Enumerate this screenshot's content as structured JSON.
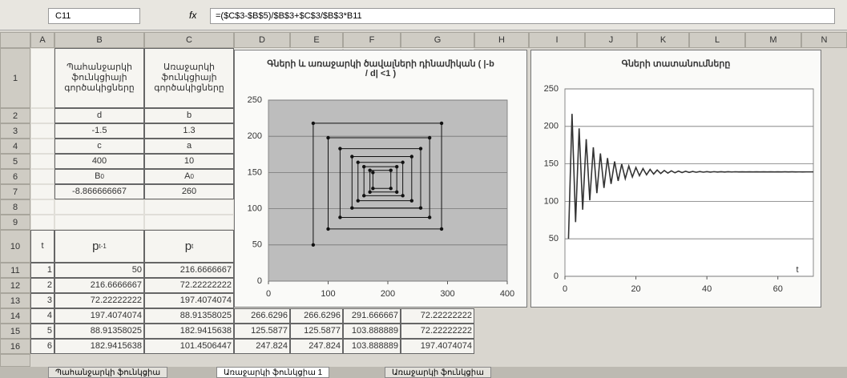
{
  "formula_bar": {
    "cell": "C11",
    "fx": "fx",
    "formula": "=($C$3-$B$5)/$B$3+$C$3/$B$3*B11"
  },
  "columns": [
    "A",
    "B",
    "C",
    "D",
    "E",
    "F",
    "G",
    "H",
    "I",
    "J",
    "K",
    "L",
    "M",
    "N"
  ],
  "rows": [
    "1",
    "2",
    "3",
    "4",
    "5",
    "6",
    "7",
    "8",
    "9",
    "10",
    "11",
    "12",
    "13",
    "14",
    "15",
    "16"
  ],
  "cells": [
    [
      null,
      "Պահանջարկի ֆունկցիայի գործակիցները",
      "Առաջարկի ֆունկցիայի գործակիցները",
      null,
      null,
      null,
      null
    ],
    [
      null,
      "d",
      "b",
      null,
      null,
      null,
      null
    ],
    [
      null,
      "-1.5",
      "1.3",
      null,
      null,
      null,
      null
    ],
    [
      null,
      "c",
      "a",
      null,
      null,
      null,
      null
    ],
    [
      null,
      "400",
      "10",
      null,
      null,
      null,
      null
    ],
    [
      null,
      {
        "base": "B",
        "sub": "0"
      },
      {
        "base": "A",
        "sub": "0"
      },
      null,
      null,
      null,
      null
    ],
    [
      null,
      "-8.866666667",
      "260",
      null,
      null,
      null,
      null
    ],
    [
      null,
      null,
      null,
      null,
      null,
      null,
      null
    ],
    [
      null,
      null,
      null,
      null,
      null,
      null,
      null
    ],
    [
      "t",
      {
        "base": "p",
        "sub": "t-1"
      },
      {
        "base": "p",
        "sub": "t"
      },
      null,
      null,
      null,
      null
    ],
    [
      "1",
      "50",
      "216.6666667",
      null,
      null,
      null,
      null
    ],
    [
      "2",
      "216.6666667",
      "72.22222222",
      null,
      null,
      null,
      null
    ],
    [
      "3",
      "72.22222222",
      "197.4074074",
      null,
      null,
      null,
      null
    ],
    [
      "4",
      "197.4074074",
      "88.91358025",
      "266.6296",
      "266.6296",
      "291.666667",
      "72.22222222"
    ],
    [
      "5",
      "88.91358025",
      "182.9415638",
      "125.5877",
      "125.5877",
      "103.888889",
      "72.22222222"
    ],
    [
      "6",
      "182.9415638",
      "101.4506447",
      "247.824",
      "247.824",
      "103.888889",
      "197.4074074"
    ]
  ],
  "sheet_tabs": [
    "Պահանջարկի ֆունկցիա",
    "Առաջարկի ֆունկցիա 1",
    "Առաջարկի ֆունկցիա"
  ],
  "chart_data": [
    {
      "type": "scatter",
      "title": "Գների և առաջարկի ծավալների դինամիկան ( |-b / d| <1 )",
      "plot_color": "#bdbdbd",
      "grid": true,
      "xlim": [
        0,
        400
      ],
      "xticks": [
        0,
        100,
        200,
        300,
        400
      ],
      "ylim": [
        0,
        250
      ],
      "yticks": [
        0,
        50,
        100,
        150,
        200,
        250
      ],
      "series": [
        {
          "color": "#111111",
          "x": [
            75,
            75,
            290,
            290,
            100,
            100,
            270,
            270,
            120,
            120,
            255,
            255,
            140,
            140,
            240,
            240,
            150,
            150,
            225,
            225,
            160,
            160,
            215,
            215,
            170,
            170,
            205,
            205,
            175,
            175
          ],
          "values": [
            50,
            218,
            218,
            72,
            72,
            198,
            198,
            88,
            88,
            183,
            183,
            101,
            101,
            172,
            172,
            111,
            111,
            164,
            164,
            118,
            118,
            158,
            158,
            123,
            123,
            153,
            153,
            128,
            128,
            150
          ]
        }
      ]
    },
    {
      "type": "line",
      "title": "Գների տատանումները",
      "x_label": "t",
      "plot_color": "#ffffff",
      "grid": true,
      "xlim": [
        0,
        70
      ],
      "xticks": [
        0,
        20,
        40,
        60
      ],
      "ylim": [
        0,
        250
      ],
      "yticks": [
        0,
        50,
        100,
        150,
        200,
        250
      ],
      "series": [
        {
          "color": "#333333",
          "x": [
            1,
            2,
            3,
            4,
            5,
            6,
            7,
            8,
            9,
            10,
            11,
            12,
            13,
            14,
            15,
            16,
            17,
            18,
            19,
            20,
            21,
            22,
            23,
            24,
            25,
            26,
            27,
            28,
            29,
            30,
            31,
            32,
            33,
            34,
            35,
            36,
            37,
            38,
            39,
            40,
            41,
            42,
            43,
            44,
            45,
            46,
            47,
            48,
            49,
            50,
            51,
            52,
            53,
            54,
            55,
            56,
            57,
            58,
            59,
            60,
            61,
            62,
            63,
            64,
            65,
            66,
            67,
            68,
            69,
            70
          ],
          "values": [
            50,
            216.67,
            72.22,
            197.41,
            88.91,
            182.94,
            101.45,
            172.08,
            110.87,
            163.91,
            117.94,
            157.78,
            123.25,
            153.18,
            127.24,
            149.72,
            130.24,
            147.12,
            132.49,
            145.17,
            134.18,
            143.71,
            135.45,
            142.61,
            136.41,
            141.78,
            137.12,
            141.16,
            137.66,
            140.69,
            138.07,
            140.34,
            138.37,
            140.08,
            138.6,
            139.88,
            138.77,
            139.73,
            138.9,
            139.62,
            138.99,
            139.54,
            139.06,
            139.48,
            139.11,
            139.44,
            139.15,
            139.41,
            139.18,
            139.39,
            139.2,
            139.37,
            139.22,
            139.35,
            139.23,
            139.34,
            139.24,
            139.33,
            139.25,
            139.32,
            139.26,
            139.31,
            139.26,
            139.31,
            139.27,
            139.3,
            139.27,
            139.3,
            139.28,
            139.3
          ]
        }
      ]
    }
  ]
}
